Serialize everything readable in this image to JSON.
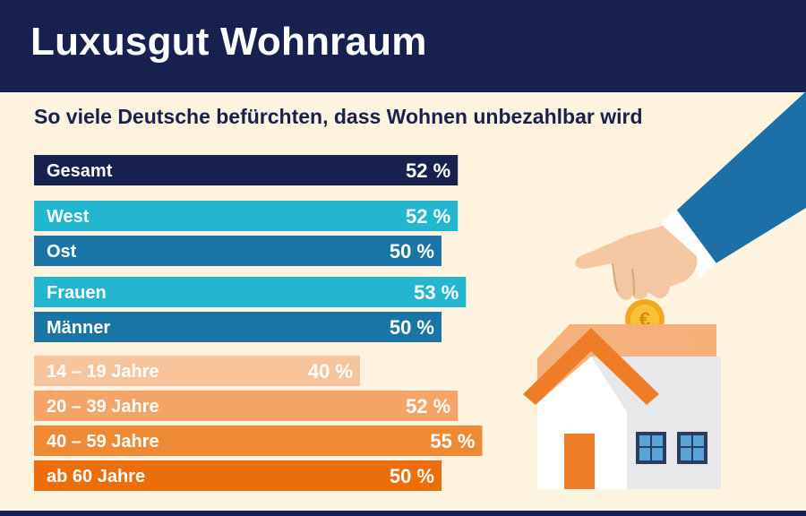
{
  "title": "Luxusgut Wohnraum",
  "subtitle": "So viele Deutsche befürchten, dass Wohnen unbezahlbar wird",
  "chart_data": {
    "type": "bar",
    "orientation": "horizontal",
    "title": "Luxusgut Wohnraum",
    "subtitle": "So viele Deutsche befürchten, dass Wohnen unbezahlbar wird",
    "unit": "%",
    "categories": [
      "Gesamt",
      "West",
      "Ost",
      "Frauen",
      "Männer",
      "14 – 19 Jahre",
      "20 – 39 Jahre",
      "40 – 59 Jahre",
      "ab 60 Jahre"
    ],
    "values": [
      52,
      52,
      50,
      53,
      50,
      40,
      52,
      55,
      50
    ],
    "value_labels": [
      "52 %",
      "52 %",
      "50 %",
      "53 %",
      "50 %",
      "40 %",
      "52 %",
      "55 %",
      "50 %"
    ],
    "groups": [
      "total",
      "region",
      "region",
      "gender",
      "gender",
      "age",
      "age",
      "age",
      "age"
    ],
    "colors": [
      "#16214f",
      "#23b6cf",
      "#1b74a6",
      "#23b6cf",
      "#1b74a6",
      "#f7c49b",
      "#f3a466",
      "#ef8a34",
      "#ec6e0a"
    ],
    "xlim": [
      0,
      55
    ],
    "grid": false,
    "legend": "none"
  },
  "colors": {
    "header": "#16214f",
    "background": "#fdf3de"
  },
  "illustration": {
    "icons": [
      "hand-icon",
      "euro-coin-icon",
      "house-piggy-bank-icon"
    ]
  }
}
